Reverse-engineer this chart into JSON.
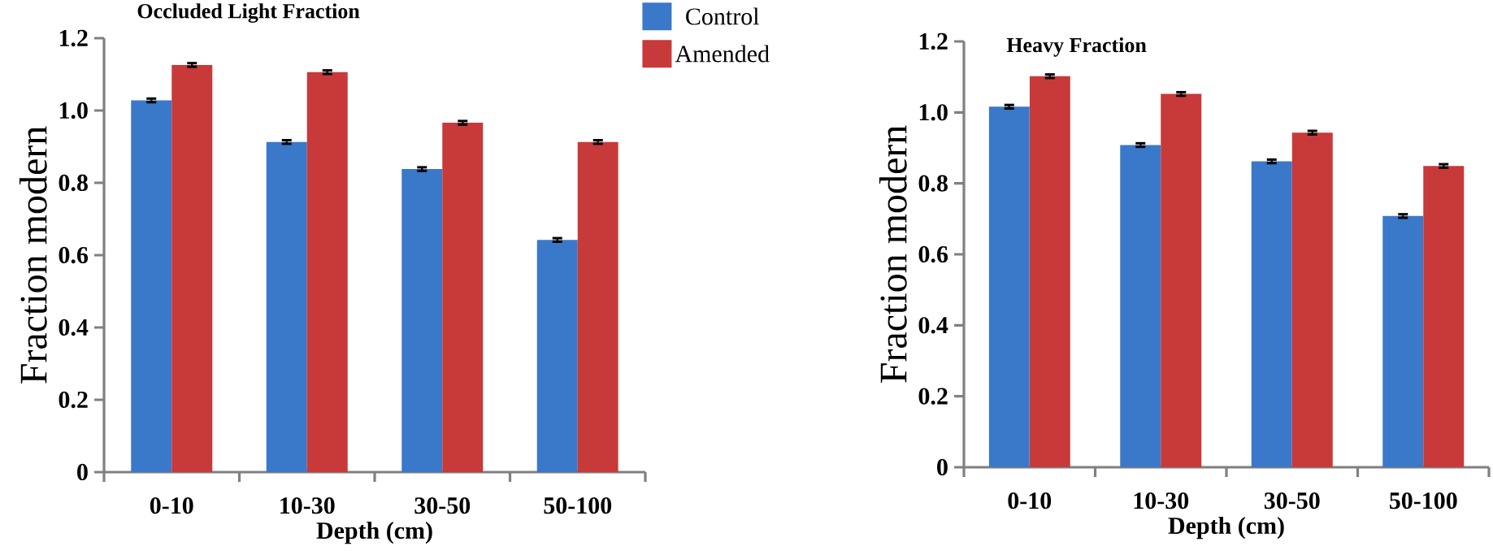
{
  "chart_data": [
    {
      "type": "bar",
      "title": "Occluded Light Fraction",
      "xlabel": "Depth (cm)",
      "ylabel": "Fraction modern",
      "categories": [
        "0-10",
        "10-30",
        "30-50",
        "50-100"
      ],
      "series": [
        {
          "name": "Control",
          "color": "#3a78c9",
          "values": [
            1.028,
            0.913,
            0.838,
            0.642
          ],
          "errors": [
            0.005,
            0.005,
            0.005,
            0.005
          ]
        },
        {
          "name": "Amended",
          "color": "#c8393a",
          "values": [
            1.126,
            1.106,
            0.966,
            0.913
          ],
          "errors": [
            0.005,
            0.005,
            0.005,
            0.005
          ]
        }
      ],
      "ylim": [
        0,
        1.2
      ],
      "yticks": [
        0,
        0.2,
        0.4,
        0.6,
        0.8,
        {
          "value": 1,
          "label": "1.0"
        },
        1.2
      ],
      "legend": "top right"
    },
    {
      "type": "bar",
      "title": "Heavy Fraction",
      "xlabel": "Depth (cm)",
      "ylabel": "Fraction modern",
      "categories": [
        "0-10",
        "10-30",
        "30-50",
        "50-100"
      ],
      "series": [
        {
          "color": "#3a78c9",
          "values": [
            1.016,
            0.908,
            0.862,
            0.708
          ],
          "errors": [
            0.005,
            0.005,
            0.005,
            0.005
          ]
        },
        {
          "color": "#c8393a",
          "values": [
            1.102,
            1.052,
            0.943,
            0.849
          ],
          "errors": [
            0.005,
            0.005,
            0.005,
            0.005
          ]
        }
      ],
      "ylim": [
        0,
        1.2
      ],
      "yticks": [
        0,
        0.2,
        0.4,
        0.6,
        0.8,
        {
          "value": 1,
          "label": "1.0"
        },
        1.2
      ]
    }
  ]
}
